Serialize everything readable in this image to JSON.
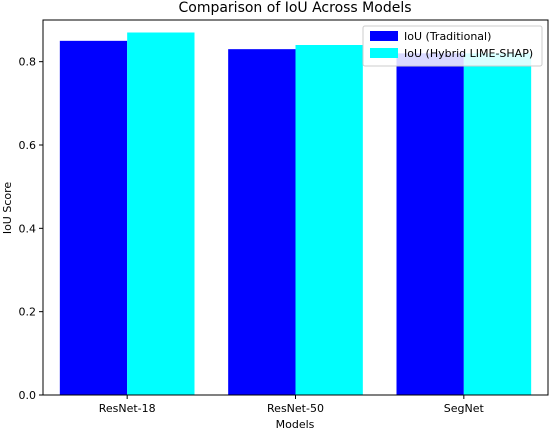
{
  "chart_data": {
    "type": "bar",
    "title": "Comparison of IoU Across Models",
    "xlabel": "Models",
    "ylabel": "IoU Score",
    "categories": [
      "ResNet-18",
      "ResNet-50",
      "SegNet"
    ],
    "series": [
      {
        "name": "IoU (Traditional)",
        "values": [
          0.85,
          0.83,
          0.82
        ],
        "color": "#0000ff"
      },
      {
        "name": "IoU (Hybrid LIME-SHAP)",
        "values": [
          0.87,
          0.84,
          0.82
        ],
        "color": "#00ffff"
      }
    ],
    "ylim": [
      0,
      0.9
    ],
    "yticks": [
      "0.0",
      "0.2",
      "0.4",
      "0.6",
      "0.8"
    ],
    "grid": false,
    "legend_position": "top-right"
  }
}
